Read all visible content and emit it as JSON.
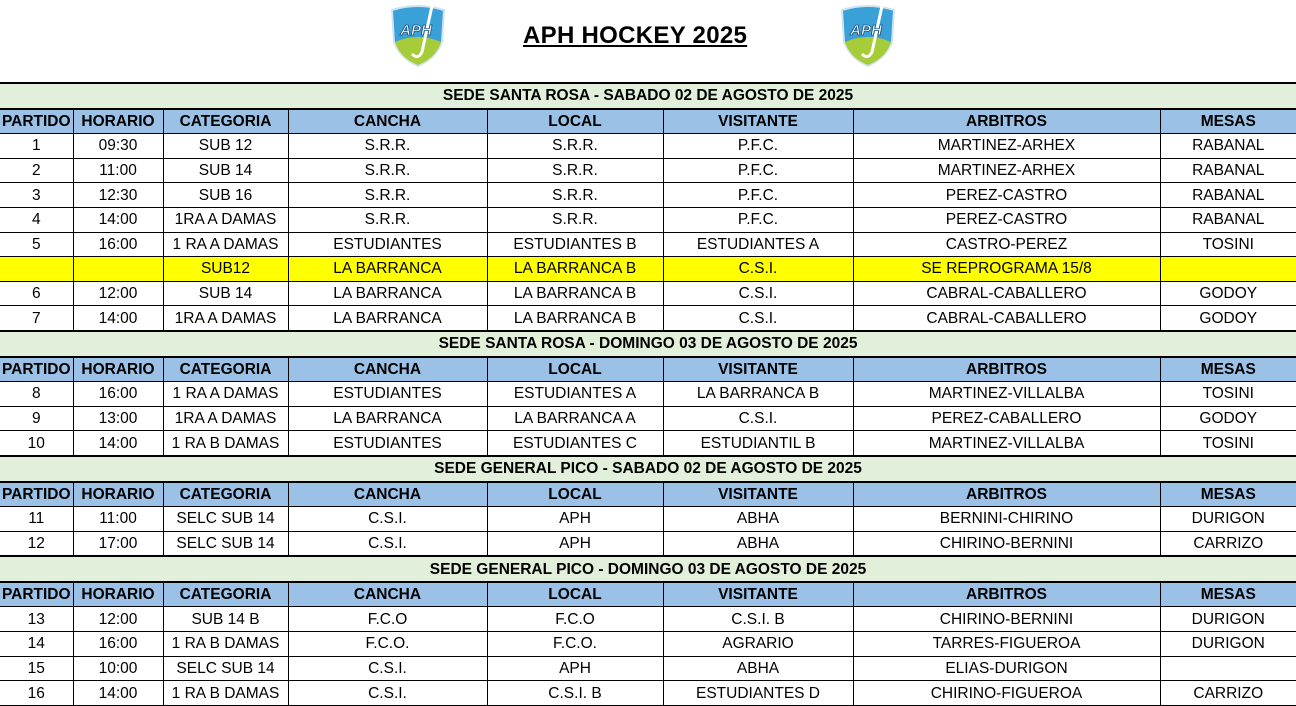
{
  "title": "APH HOCKEY 2025",
  "logo_text": "APH",
  "colors": {
    "section": "#e2efda",
    "header": "#9bc2e6",
    "highlight": "#ffff00"
  },
  "columns": [
    "PARTIDO",
    "HORARIO",
    "CATEGORIA",
    "CANCHA",
    "LOCAL",
    "VISITANTE",
    "ARBITROS",
    "MESAS"
  ],
  "sections": [
    {
      "title": "SEDE SANTA ROSA -   SABADO 02 DE AGOSTO DE 2025",
      "rows": [
        [
          "1",
          "09:30",
          "SUB 12",
          "S.R.R.",
          "S.R.R.",
          "P.F.C.",
          "MARTINEZ-ARHEX",
          "RABANAL"
        ],
        [
          "2",
          "11:00",
          "SUB 14",
          "S.R.R.",
          "S.R.R.",
          "P.F.C.",
          "MARTINEZ-ARHEX",
          "RABANAL"
        ],
        [
          "3",
          "12:30",
          "SUB 16",
          "S.R.R.",
          "S.R.R.",
          "P.F.C.",
          "PEREZ-CASTRO",
          "RABANAL"
        ],
        [
          "4",
          "14:00",
          "1RA A DAMAS",
          "S.R.R.",
          "S.R.R.",
          "P.F.C.",
          "PEREZ-CASTRO",
          "RABANAL"
        ],
        [
          "5",
          "16:00",
          "1 RA A DAMAS",
          "ESTUDIANTES",
          "ESTUDIANTES B",
          "ESTUDIANTES A",
          "CASTRO-PEREZ",
          "TOSINI"
        ],
        [
          "",
          "",
          "SUB12",
          "LA BARRANCA",
          "LA BARRANCA B",
          "C.S.I.",
          "SE REPROGRAMA 15/8",
          ""
        ],
        [
          "6",
          "12:00",
          "SUB 14",
          "LA BARRANCA",
          "LA BARRANCA B",
          "C.S.I.",
          "CABRAL-CABALLERO",
          "GODOY"
        ],
        [
          "7",
          "14:00",
          "1RA A DAMAS",
          "LA BARRANCA",
          "LA BARRANCA B",
          "C.S.I.",
          "CABRAL-CABALLERO",
          "GODOY"
        ]
      ],
      "highlight_row": 5
    },
    {
      "title": "SEDE SANTA ROSA -   DOMINGO 03 DE AGOSTO DE 2025",
      "rows": [
        [
          "8",
          "16:00",
          "1 RA A DAMAS",
          "ESTUDIANTES",
          "ESTUDIANTES A",
          "LA BARRANCA B",
          "MARTINEZ-VILLALBA",
          "TOSINI"
        ],
        [
          "9",
          "13:00",
          "1RA A DAMAS",
          "LA BARRANCA",
          "LA BARRANCA A",
          "C.S.I.",
          "PEREZ-CABALLERO",
          "GODOY"
        ],
        [
          "10",
          "14:00",
          "1 RA B DAMAS",
          "ESTUDIANTES",
          "ESTUDIANTES C",
          "ESTUDIANTIL B",
          "MARTINEZ-VILLALBA",
          "TOSINI"
        ]
      ]
    },
    {
      "title": "SEDE GENERAL PICO -   SABADO 02 DE AGOSTO DE 2025",
      "rows": [
        [
          "11",
          "11:00",
          "SELC SUB 14",
          "C.S.I.",
          "APH",
          "ABHA",
          "BERNINI-CHIRINO",
          "DURIGON"
        ],
        [
          "12",
          "17:00",
          "SELC SUB 14",
          "C.S.I.",
          "APH",
          "ABHA",
          "CHIRINO-BERNINI",
          "CARRIZO"
        ]
      ]
    },
    {
      "title": "SEDE GENERAL PICO -   DOMINGO 03 DE AGOSTO DE 2025",
      "rows": [
        [
          "13",
          "12:00",
          "SUB 14 B",
          "F.C.O",
          "F.C.O",
          "C.S.I. B",
          "CHIRINO-BERNINI",
          "DURIGON"
        ],
        [
          "14",
          "16:00",
          "1 RA B DAMAS",
          "F.C.O.",
          "F.C.O.",
          "AGRARIO",
          "TARRES-FIGUEROA",
          "DURIGON"
        ],
        [
          "15",
          "10:00",
          "SELC SUB 14",
          "C.S.I.",
          "APH",
          "ABHA",
          "ELIAS-DURIGON",
          ""
        ],
        [
          "16",
          "14:00",
          "1 RA B DAMAS",
          "C.S.I.",
          "C.S.I. B",
          "ESTUDIANTES D",
          "CHIRINO-FIGUEROA",
          "CARRIZO"
        ]
      ]
    }
  ]
}
